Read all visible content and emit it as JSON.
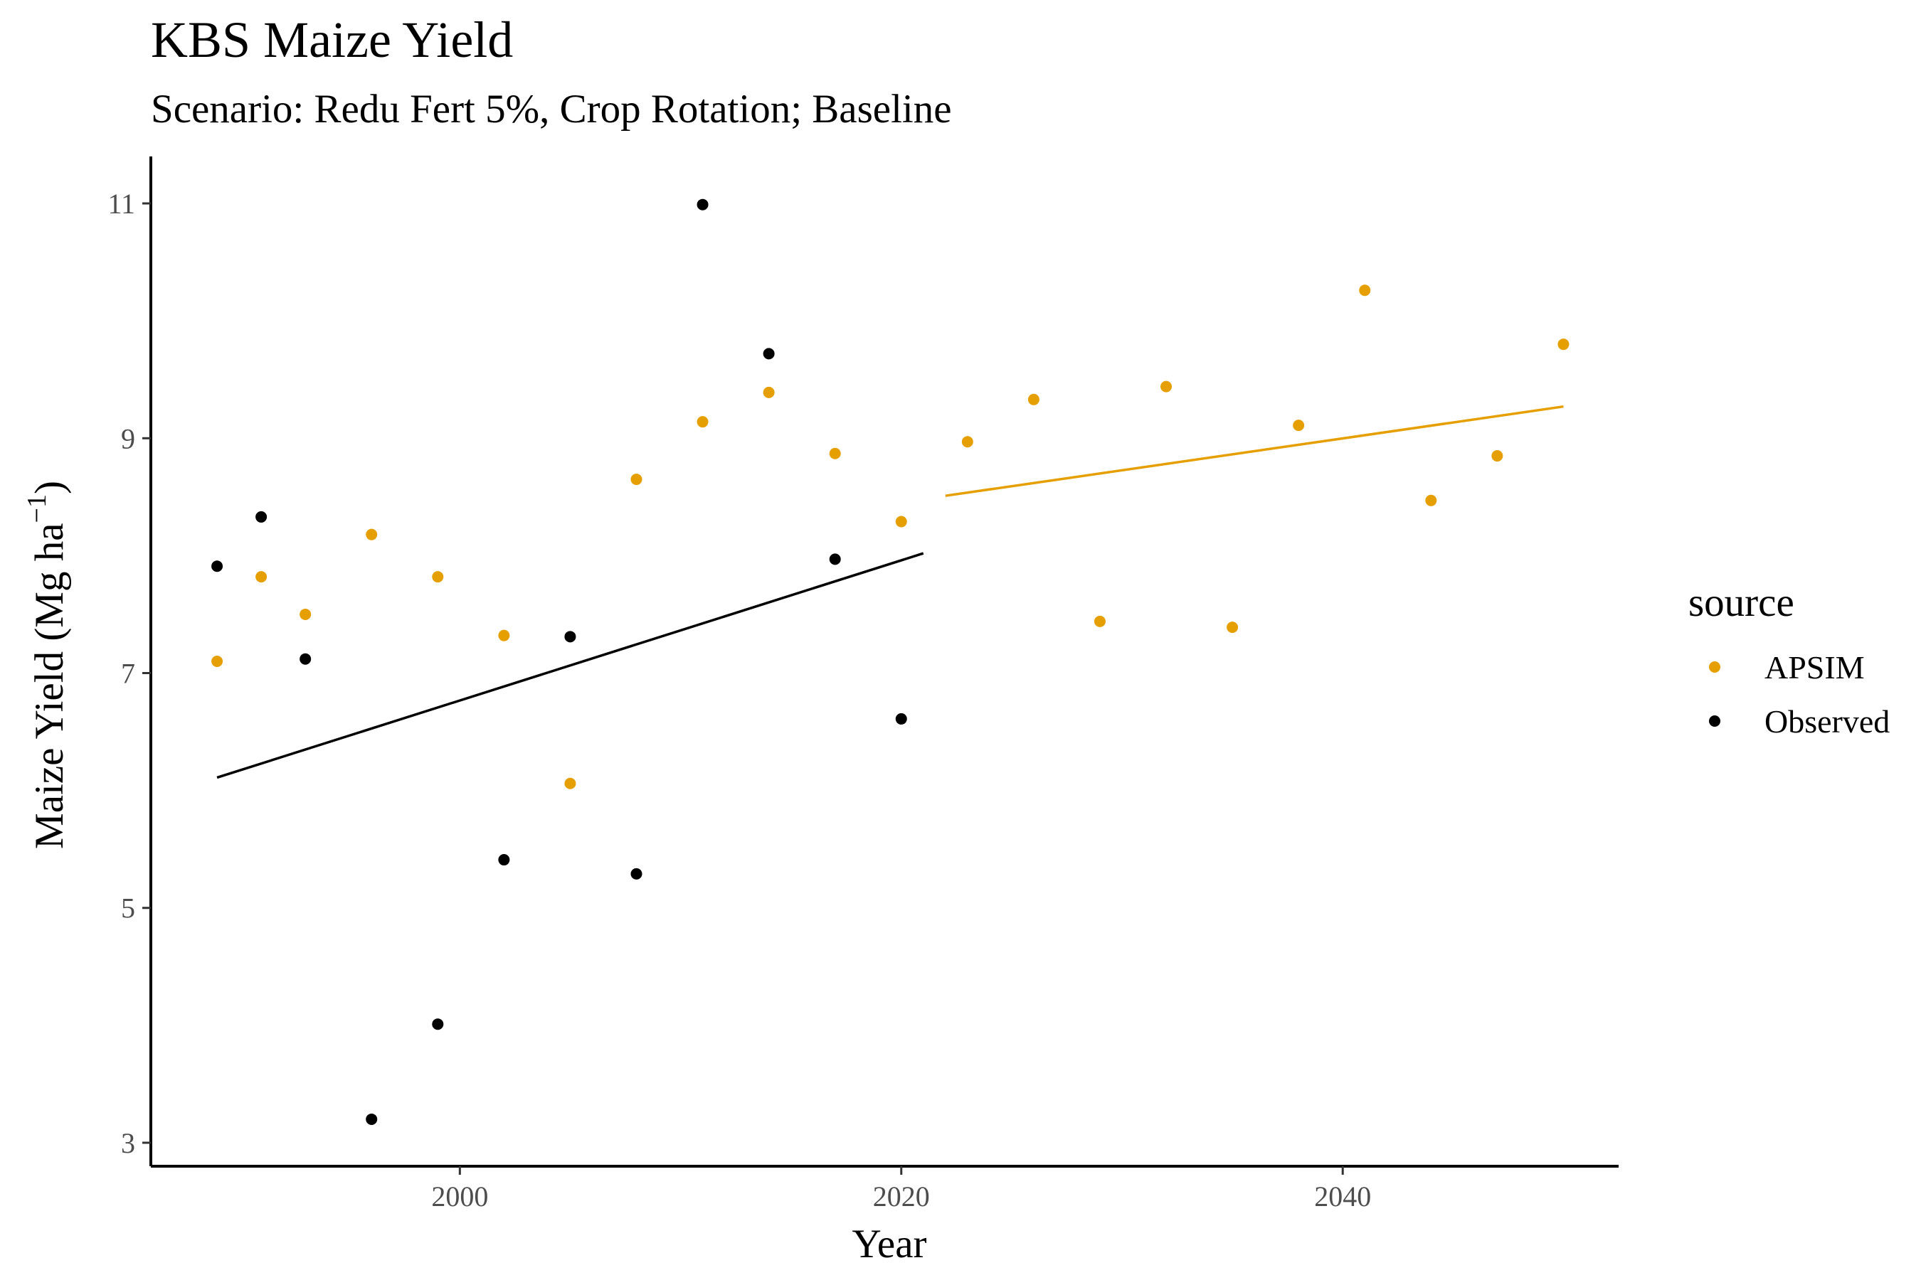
{
  "chart_data": {
    "type": "scatter",
    "title": "KBS Maize Yield",
    "subtitle": "Scenario: Redu Fert 5%, Crop Rotation; Baseline",
    "xlabel": "Year",
    "ylabel": "Maize Yield (Mg ha",
    "ylabel_superscript": "−1",
    "ylabel_close": ")",
    "xlim": [
      1986,
      2052.5
    ],
    "ylim": [
      2.8,
      11.4
    ],
    "x_ticks": [
      2000,
      2020,
      2040
    ],
    "y_ticks": [
      3,
      5,
      7,
      9,
      11
    ],
    "grid": false,
    "legend": {
      "title": "source",
      "position": "right"
    },
    "series": [
      {
        "name": "APSIM",
        "color": "#E69F00",
        "points": [
          [
            1989,
            7.1
          ],
          [
            1991,
            7.82
          ],
          [
            1993,
            7.5
          ],
          [
            1996,
            8.18
          ],
          [
            1999,
            7.82
          ],
          [
            2002,
            7.32
          ],
          [
            2005,
            6.06
          ],
          [
            2008,
            8.65
          ],
          [
            2011,
            9.14
          ],
          [
            2014,
            9.39
          ],
          [
            2017,
            8.87
          ],
          [
            2020,
            8.29
          ],
          [
            2023,
            8.97
          ],
          [
            2026,
            9.33
          ],
          [
            2029,
            7.44
          ],
          [
            2032,
            9.44
          ],
          [
            2035,
            7.39
          ],
          [
            2038,
            9.11
          ],
          [
            2041,
            10.26
          ],
          [
            2044,
            8.47
          ],
          [
            2047,
            8.85
          ],
          [
            2050,
            9.8
          ]
        ],
        "trend": [
          [
            2022,
            8.51
          ],
          [
            2050,
            9.27
          ]
        ]
      },
      {
        "name": "Observed",
        "color": "#000000",
        "points": [
          [
            1989,
            7.91
          ],
          [
            1991,
            8.33
          ],
          [
            1993,
            7.12
          ],
          [
            1996,
            3.2
          ],
          [
            1999,
            4.01
          ],
          [
            2002,
            5.41
          ],
          [
            2005,
            7.31
          ],
          [
            2008,
            5.29
          ],
          [
            2011,
            10.99
          ],
          [
            2014,
            9.72
          ],
          [
            2017,
            7.97
          ],
          [
            2020,
            6.61
          ]
        ],
        "trend": [
          [
            1989,
            6.11
          ],
          [
            2021,
            8.02
          ]
        ]
      }
    ]
  }
}
